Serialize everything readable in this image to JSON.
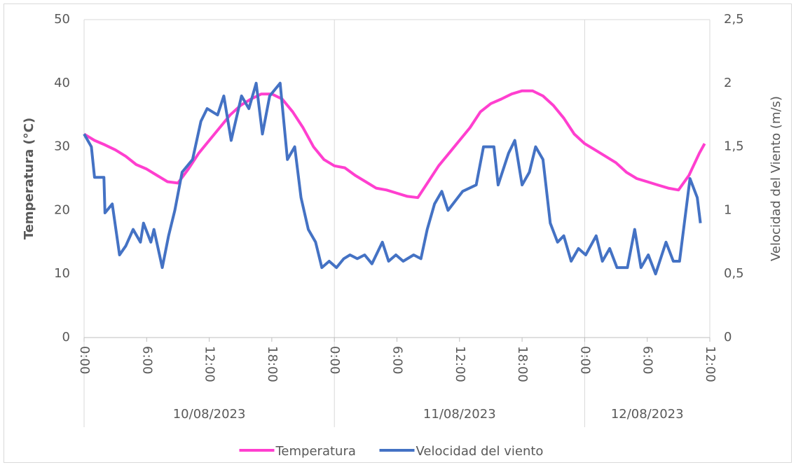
{
  "chart_data": {
    "type": "line",
    "y_label": "Temperatura (°C)",
    "y2_label": "Velocidad del Viento (m/s)",
    "xlim": [
      0,
      60
    ],
    "xticks": [
      {
        "value": 0,
        "label": "0:00"
      },
      {
        "value": 6,
        "label": "6:00"
      },
      {
        "value": 12,
        "label": "12:00"
      },
      {
        "value": 18,
        "label": "18:00"
      },
      {
        "value": 24,
        "label": "0:00"
      },
      {
        "value": 30,
        "label": "6:00"
      },
      {
        "value": 36,
        "label": "12:00"
      },
      {
        "value": 42,
        "label": "18:00"
      },
      {
        "value": 48,
        "label": "0:00"
      },
      {
        "value": 54,
        "label": "6:00"
      },
      {
        "value": 60,
        "label": "12:00"
      }
    ],
    "date_groups": [
      {
        "label": "10/08/2023",
        "range": [
          0,
          24
        ]
      },
      {
        "label": "11/08/2023",
        "range": [
          24,
          48
        ]
      },
      {
        "label": "12/08/2023",
        "range": [
          48,
          60
        ]
      }
    ],
    "ylim": [
      0,
      50
    ],
    "yticks": [
      0,
      10,
      20,
      30,
      40,
      50
    ],
    "y2lim": [
      0,
      2.5
    ],
    "y2ticks": [
      0,
      {
        "value": 0.5,
        "label": "0,5"
      },
      1,
      {
        "value": 1.5,
        "label": "1,5"
      },
      2,
      {
        "value": 2.5,
        "label": "2,5"
      }
    ],
    "legend": "bottom",
    "series": [
      {
        "name": "Temperatura",
        "color": "#ff3fcf",
        "x": [
          0,
          1,
          2,
          3,
          4,
          5,
          6,
          7,
          8,
          9,
          10,
          11,
          12,
          13,
          14,
          15,
          16,
          17,
          18,
          19,
          20,
          21,
          22,
          23,
          24,
          25,
          26,
          27,
          28,
          29,
          30,
          31,
          32,
          33,
          34,
          35,
          36,
          37,
          38,
          39,
          40,
          41,
          42,
          43,
          44,
          45,
          46,
          47,
          48,
          49,
          50,
          51,
          52,
          53,
          54,
          55,
          56,
          57,
          58,
          59,
          59.5
        ],
        "values": [
          32,
          31,
          30.3,
          29.5,
          28.5,
          27.2,
          26.5,
          25.5,
          24.5,
          24.3,
          26.5,
          29,
          31,
          33,
          35,
          36.5,
          37.5,
          38.3,
          38.3,
          37.5,
          35.5,
          33,
          30,
          28,
          27,
          26.7,
          25.5,
          24.5,
          23.5,
          23.2,
          22.7,
          22.2,
          22,
          24.5,
          27,
          29,
          31,
          33,
          35.5,
          36.8,
          37.5,
          38.3,
          38.8,
          38.8,
          38,
          36.5,
          34.5,
          32,
          30.5,
          29.5,
          28.5,
          27.5,
          26,
          25,
          24.5,
          24,
          23.5,
          23.2,
          25.5,
          29,
          30.5
        ]
      },
      {
        "name": "Velocidad del viento",
        "color": "#4472c4",
        "axis": "y2",
        "x": [
          0,
          0.7,
          1,
          1.9,
          2,
          2.7,
          3.4,
          4,
          4.7,
          5.4,
          5.7,
          6.4,
          6.7,
          7.5,
          8.1,
          8.7,
          9.4,
          10.4,
          11.2,
          11.8,
          12.8,
          13.4,
          14.1,
          15.1,
          15.8,
          16.5,
          17.1,
          17.8,
          18.8,
          19.5,
          20.2,
          20.8,
          21.5,
          22.2,
          22.8,
          23.5,
          24.2,
          24.9,
          25.5,
          26.2,
          26.9,
          27.6,
          28.6,
          29.2,
          29.9,
          30.6,
          31.6,
          32.3,
          32.9,
          33.6,
          34.3,
          34.9,
          36.3,
          37.6,
          38.3,
          39.3,
          39.7,
          40.7,
          41.3,
          42,
          42.7,
          43.3,
          44,
          44.7,
          45.4,
          46,
          46.7,
          47.4,
          48.1,
          49.1,
          49.7,
          50.4,
          51.1,
          52.1,
          52.8,
          53.4,
          54.1,
          54.8,
          55.8,
          56.5,
          57.1,
          58.1,
          58.8,
          59.1
        ],
        "values": [
          1.6,
          1.5,
          1.26,
          1.26,
          0.98,
          1.05,
          0.65,
          0.72,
          0.85,
          0.75,
          0.9,
          0.75,
          0.85,
          0.55,
          0.8,
          1.0,
          1.3,
          1.4,
          1.7,
          1.8,
          1.75,
          1.9,
          1.55,
          1.9,
          1.8,
          2.0,
          1.6,
          1.9,
          2.0,
          1.4,
          1.5,
          1.1,
          0.85,
          0.75,
          0.55,
          0.6,
          0.55,
          0.62,
          0.65,
          0.62,
          0.65,
          0.58,
          0.75,
          0.6,
          0.65,
          0.6,
          0.65,
          0.62,
          0.85,
          1.05,
          1.15,
          1.0,
          1.15,
          1.2,
          1.5,
          1.5,
          1.2,
          1.45,
          1.55,
          1.2,
          1.3,
          1.5,
          1.4,
          0.9,
          0.75,
          0.8,
          0.6,
          0.7,
          0.65,
          0.8,
          0.6,
          0.7,
          0.55,
          0.55,
          0.85,
          0.55,
          0.65,
          0.5,
          0.75,
          0.6,
          0.6,
          1.25,
          1.1,
          0.9
        ]
      }
    ]
  }
}
